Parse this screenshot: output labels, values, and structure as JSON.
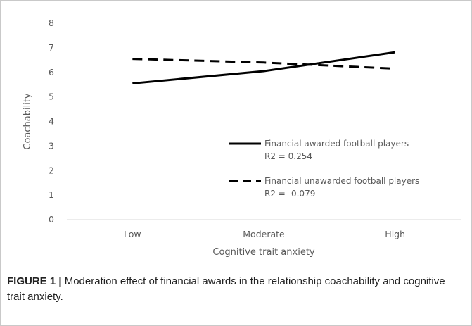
{
  "chart_data": {
    "type": "line",
    "categories": [
      "Low",
      "Moderate",
      "High"
    ],
    "xlabel": "Cognitive trait anxiety",
    "ylabel": "Coachability",
    "ylim": [
      0,
      8
    ],
    "yticks": [
      "0",
      "1",
      "2",
      "3",
      "4",
      "5",
      "6",
      "7",
      "8"
    ],
    "grid": false,
    "legend_position": "center-right",
    "series": [
      {
        "name": "Financial awarded football players",
        "r2_label": "R2 = 0.254",
        "style": "solid",
        "color": "#000000",
        "values": [
          5.55,
          6.05,
          6.82
        ]
      },
      {
        "name": "Financial unawarded football players",
        "r2_label": "R2 = -0.079",
        "style": "dashed",
        "color": "#000000",
        "values": [
          6.55,
          6.4,
          6.15
        ]
      }
    ]
  },
  "caption": {
    "label": "FIGURE 1 |",
    "text": " Moderation effect of financial awards in the relationship coachability and cognitive trait anxiety."
  }
}
